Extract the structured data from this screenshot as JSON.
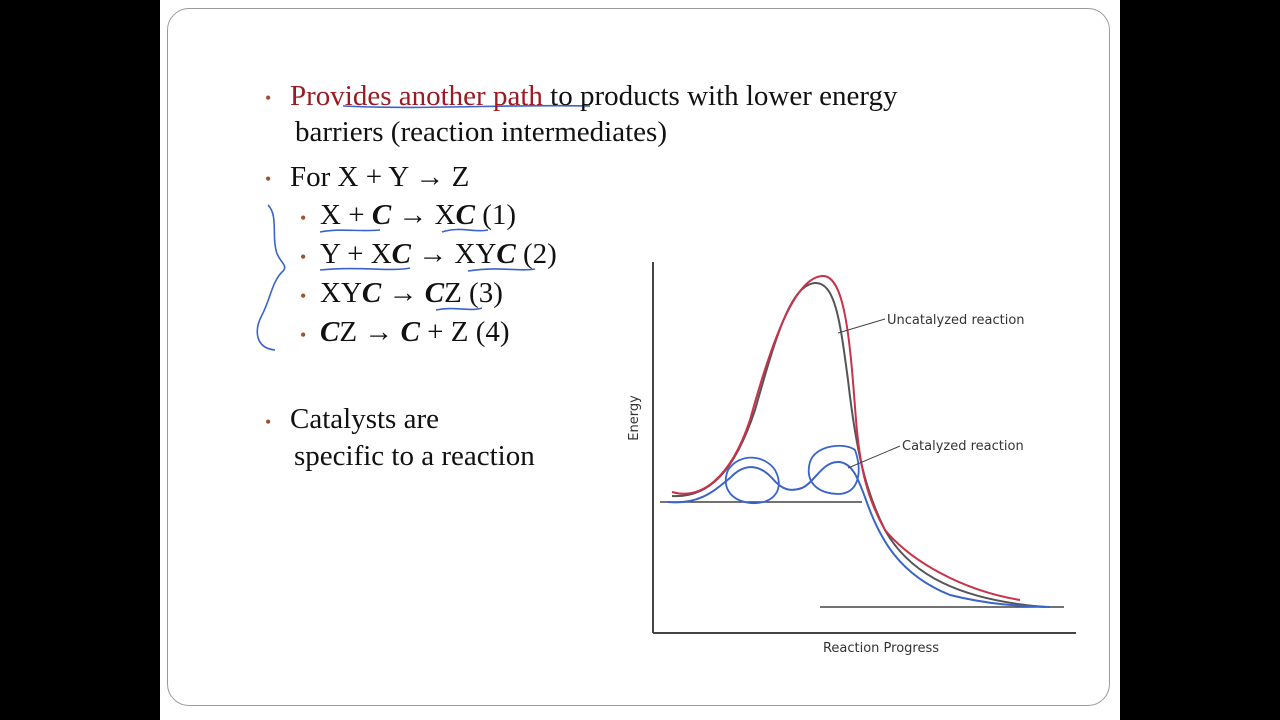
{
  "bullets": [
    {
      "parts": [
        "Provides another path",
        " to products with lower energy"
      ],
      "line2": "barriers (reaction intermediates)"
    },
    {
      "text": "For X + Y → Z"
    },
    {
      "text": "Catalysts are",
      "line2": "specific to a reaction"
    }
  ],
  "steps": [
    [
      "X + ",
      "C",
      " → X",
      "C",
      " (1)"
    ],
    [
      "Y + X",
      "C",
      " → XY",
      "C",
      " (2)"
    ],
    [
      "XY",
      "C",
      " → ",
      "C",
      "Z (3)"
    ],
    [
      "C",
      "Z → ",
      "C",
      " + Z (4)"
    ]
  ],
  "diagram": {
    "y_label": "Energy",
    "x_label": "Reaction Progress",
    "uncatalyzed": "Uncatalyzed reaction",
    "catalyzed": "Catalyzed reaction"
  }
}
